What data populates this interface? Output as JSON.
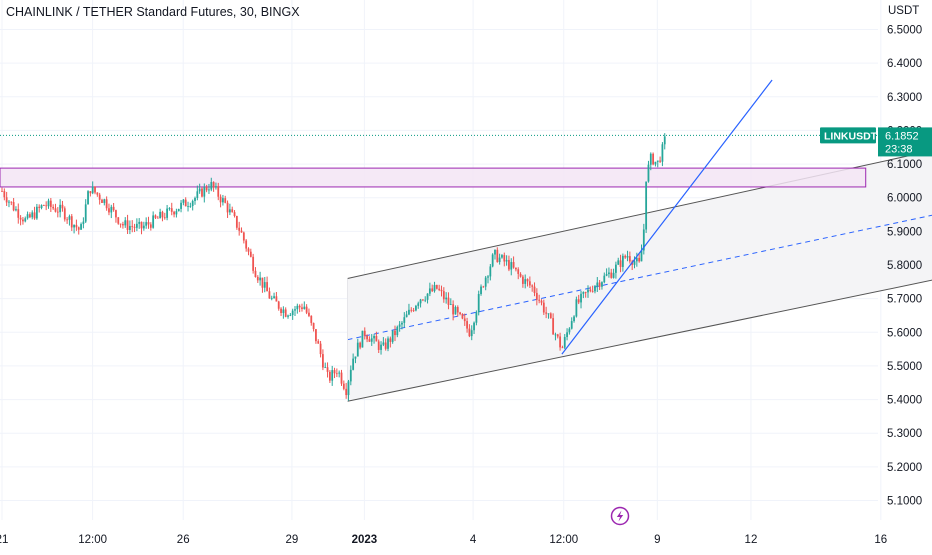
{
  "chart_data": {
    "type": "candlestick",
    "title": "CHAINLINK / TETHER Standard Futures, 30, BINGX",
    "symbol": "LINKUSDT",
    "quote_currency": "USDT",
    "last_price": "6.1852",
    "countdown": "23:38",
    "y_range": [
      5.04,
      6.6
    ],
    "y_ticks": [
      "6.5000",
      "6.4000",
      "6.3000",
      "6.2000",
      "6.1000",
      "6.0000",
      "5.9000",
      "5.8000",
      "5.7000",
      "5.6000",
      "5.5000",
      "5.4000",
      "5.3000",
      "5.2000",
      "5.1000"
    ],
    "x_ticks": [
      {
        "label": "21",
        "t": 0.0
      },
      {
        "label": "12:00",
        "t": 1.5
      },
      {
        "label": "26",
        "t": 3.0
      },
      {
        "label": "29",
        "t": 4.8
      },
      {
        "label": "2023",
        "t": 6.0,
        "bold": true
      },
      {
        "label": "4",
        "t": 7.8
      },
      {
        "label": "12:00",
        "t": 9.3
      },
      {
        "label": "9",
        "t": 10.85
      },
      {
        "label": "12",
        "t": 12.4
      },
      {
        "label": "16",
        "t": 14.55
      }
    ],
    "x_range": [
      0.0,
      15.4
    ],
    "colors": {
      "up": "#26a69a",
      "down": "#ef5350",
      "trendline": "#2962ff",
      "zone_border": "#9c27b0",
      "zone_fill": "#f3e5f5",
      "channel_line": "#555555",
      "channel_fill": "#f4f4f6",
      "price_line": "#089981"
    },
    "zone": {
      "t_start": 0.0,
      "t_end": 14.3,
      "price_top": 6.088,
      "price_bottom": 6.032
    },
    "channel": {
      "t_start": 5.72,
      "t_end": 15.4,
      "upper_start": 5.76,
      "upper_end": 6.14,
      "lower_start": 5.395,
      "lower_end": 5.755,
      "mid_start": 5.578,
      "mid_end": 5.948
    },
    "trendline": {
      "t_start": 9.27,
      "price_start": 5.535,
      "t_end": 12.75,
      "price_end": 6.35
    },
    "path_anchors": [
      [
        0.0,
        6.02
      ],
      [
        0.2,
        5.97
      ],
      [
        0.4,
        5.93
      ],
      [
        0.7,
        5.98
      ],
      [
        1.0,
        5.96
      ],
      [
        1.3,
        5.9
      ],
      [
        1.45,
        6.03
      ],
      [
        1.7,
        5.99
      ],
      [
        2.0,
        5.92
      ],
      [
        2.3,
        5.91
      ],
      [
        2.6,
        5.94
      ],
      [
        2.9,
        5.97
      ],
      [
        3.2,
        6.0
      ],
      [
        3.45,
        6.04
      ],
      [
        3.7,
        5.98
      ],
      [
        3.95,
        5.9
      ],
      [
        4.2,
        5.78
      ],
      [
        4.45,
        5.7
      ],
      [
        4.7,
        5.66
      ],
      [
        5.0,
        5.68
      ],
      [
        5.2,
        5.58
      ],
      [
        5.4,
        5.46
      ],
      [
        5.55,
        5.49
      ],
      [
        5.7,
        5.43
      ],
      [
        5.8,
        5.52
      ],
      [
        6.0,
        5.6
      ],
      [
        6.3,
        5.55
      ],
      [
        6.6,
        5.62
      ],
      [
        6.9,
        5.7
      ],
      [
        7.2,
        5.73
      ],
      [
        7.5,
        5.66
      ],
      [
        7.75,
        5.6
      ],
      [
        7.95,
        5.74
      ],
      [
        8.15,
        5.83
      ],
      [
        8.4,
        5.8
      ],
      [
        8.6,
        5.76
      ],
      [
        8.8,
        5.73
      ],
      [
        9.0,
        5.66
      ],
      [
        9.15,
        5.6
      ],
      [
        9.27,
        5.55
      ],
      [
        9.5,
        5.68
      ],
      [
        9.8,
        5.74
      ],
      [
        10.1,
        5.78
      ],
      [
        10.35,
        5.83
      ],
      [
        10.55,
        5.8
      ],
      [
        10.62,
        5.88
      ],
      [
        10.66,
        6.06
      ],
      [
        10.75,
        6.12
      ],
      [
        10.85,
        6.1
      ],
      [
        10.95,
        6.15
      ],
      [
        11.0,
        6.19
      ]
    ]
  }
}
